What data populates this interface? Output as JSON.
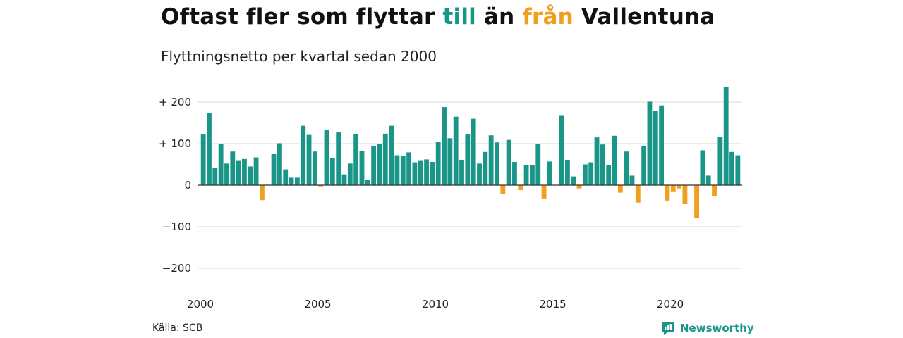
{
  "title": {
    "part1": "Oftast fler som flyttar ",
    "till": "till",
    "part2": " än ",
    "fran": "från",
    "part3": " Vallentuna"
  },
  "subtitle": "Flyttningsnetto per kvartal sedan 2000",
  "source": "Källa: SCB",
  "brand": {
    "name": "Newsworthy",
    "logo_icon": "newsworthy-chat-bar-icon"
  },
  "colors": {
    "positive": "#1a9688",
    "negative": "#f0a01e",
    "grid": "#d9d9d9",
    "zero_line": "#333333"
  },
  "chart_data": {
    "type": "bar",
    "title": "Oftast fler som flyttar till än från Vallentuna",
    "subtitle": "Flyttningsnetto per kvartal sedan 2000",
    "xlabel": "",
    "ylabel": "",
    "ylim": [
      -230,
      250
    ],
    "yticks": [
      {
        "value": 200,
        "label": "+ 200"
      },
      {
        "value": 100,
        "label": "+ 100"
      },
      {
        "value": 0,
        "label": "0"
      },
      {
        "value": -100,
        "label": "−100"
      },
      {
        "value": -200,
        "label": "−200"
      }
    ],
    "xlim": [
      2000.0,
      2023.0
    ],
    "xticks": [
      {
        "value": 2000,
        "label": "2000"
      },
      {
        "value": 2005,
        "label": "2005"
      },
      {
        "value": 2010,
        "label": "2010"
      },
      {
        "value": 2015,
        "label": "2015"
      },
      {
        "value": 2020,
        "label": "2020"
      }
    ],
    "grid": true,
    "legend": "none",
    "series": [
      {
        "start_year": 2000,
        "periods_per_year": 4,
        "values": [
          122,
          173,
          42,
          100,
          52,
          81,
          60,
          63,
          45,
          67,
          -36,
          1,
          75,
          101,
          38,
          18,
          18,
          143,
          121,
          81,
          -3,
          134,
          66,
          127,
          26,
          52,
          123,
          83,
          12,
          94,
          99,
          124,
          143,
          72,
          70,
          79,
          55,
          60,
          62,
          56,
          105,
          188,
          113,
          165,
          61,
          122,
          160,
          52,
          80,
          120,
          103,
          -22,
          109,
          56,
          -12,
          49,
          49,
          100,
          -32,
          57,
          0,
          167,
          61,
          21,
          -8,
          50,
          55,
          115,
          98,
          49,
          119,
          -18,
          81,
          23,
          -42,
          95,
          201,
          179,
          192,
          -37,
          -15,
          -8,
          -45,
          0,
          -78,
          84,
          23,
          -27,
          116,
          236,
          80,
          72
        ]
      }
    ]
  }
}
